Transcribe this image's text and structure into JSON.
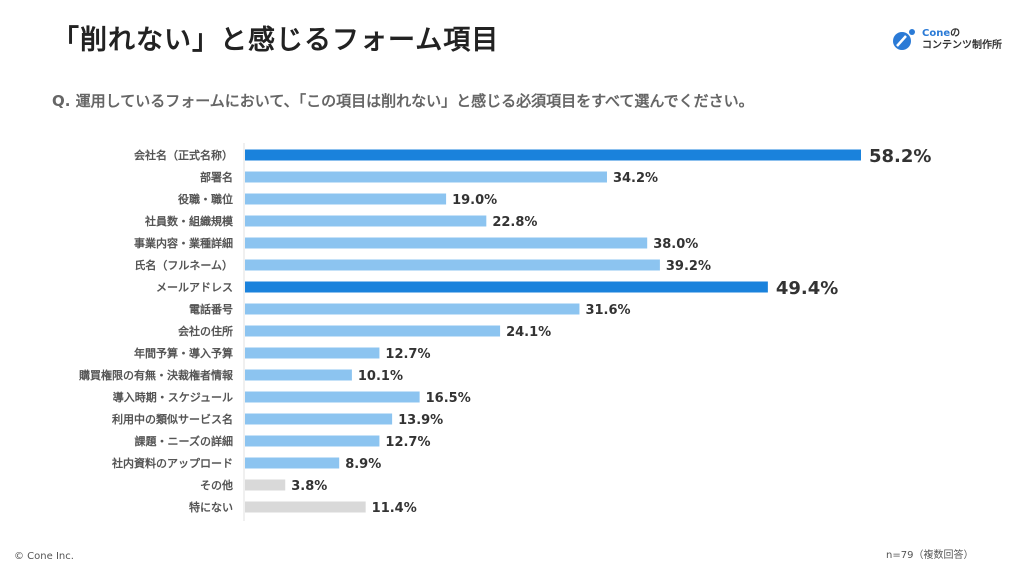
{
  "title": "「削れない」と感じるフォーム項目",
  "question": "Q. 運用しているフォームにおいて、「この項目は削れない」と感じる必須項目をすべて選んでください。",
  "logo": {
    "brand": "Cone",
    "suffix": "の",
    "line2": "コンテンツ制作所"
  },
  "footer": {
    "copyright": "© Cone Inc.",
    "note": "n=79（複数回答）"
  },
  "colors": {
    "highlight": "#1a82dc",
    "normal": "#8cc4f0",
    "other": "#d9d9d9",
    "axis": "#e2e2e2"
  },
  "chart_data": {
    "type": "bar",
    "orientation": "horizontal",
    "unit": "%",
    "categories": [
      "会社名（正式名称）",
      "部署名",
      "役職・職位",
      "社員数・組織規模",
      "事業内容・業種詳細",
      "氏名（フルネーム）",
      "メールアドレス",
      "電話番号",
      "会社の住所",
      "年間予算・導入予算",
      "購買権限の有無・決裁権者情報",
      "導入時期・スケジュール",
      "利用中の類似サービス名",
      "課題・ニーズの詳細",
      "社内資料のアップロード",
      "その他",
      "特にない"
    ],
    "values": [
      58.2,
      34.2,
      19.0,
      22.8,
      38.0,
      39.2,
      49.4,
      31.6,
      24.1,
      12.7,
      10.1,
      16.5,
      13.9,
      12.7,
      8.9,
      3.8,
      11.4
    ],
    "labels": [
      "58.2%",
      "34.2%",
      "19.0%",
      "22.8%",
      "38.0%",
      "39.2%",
      "49.4%",
      "31.6%",
      "24.1%",
      "12.7%",
      "10.1%",
      "16.5%",
      "13.9%",
      "12.7%",
      "8.9%",
      "3.8%",
      "11.4%"
    ],
    "bar_style": [
      "highlight",
      "normal",
      "normal",
      "normal",
      "normal",
      "normal",
      "highlight",
      "normal",
      "normal",
      "normal",
      "normal",
      "normal",
      "normal",
      "normal",
      "normal",
      "other",
      "other"
    ],
    "xlim": [
      0,
      58.2
    ],
    "grid": false
  }
}
